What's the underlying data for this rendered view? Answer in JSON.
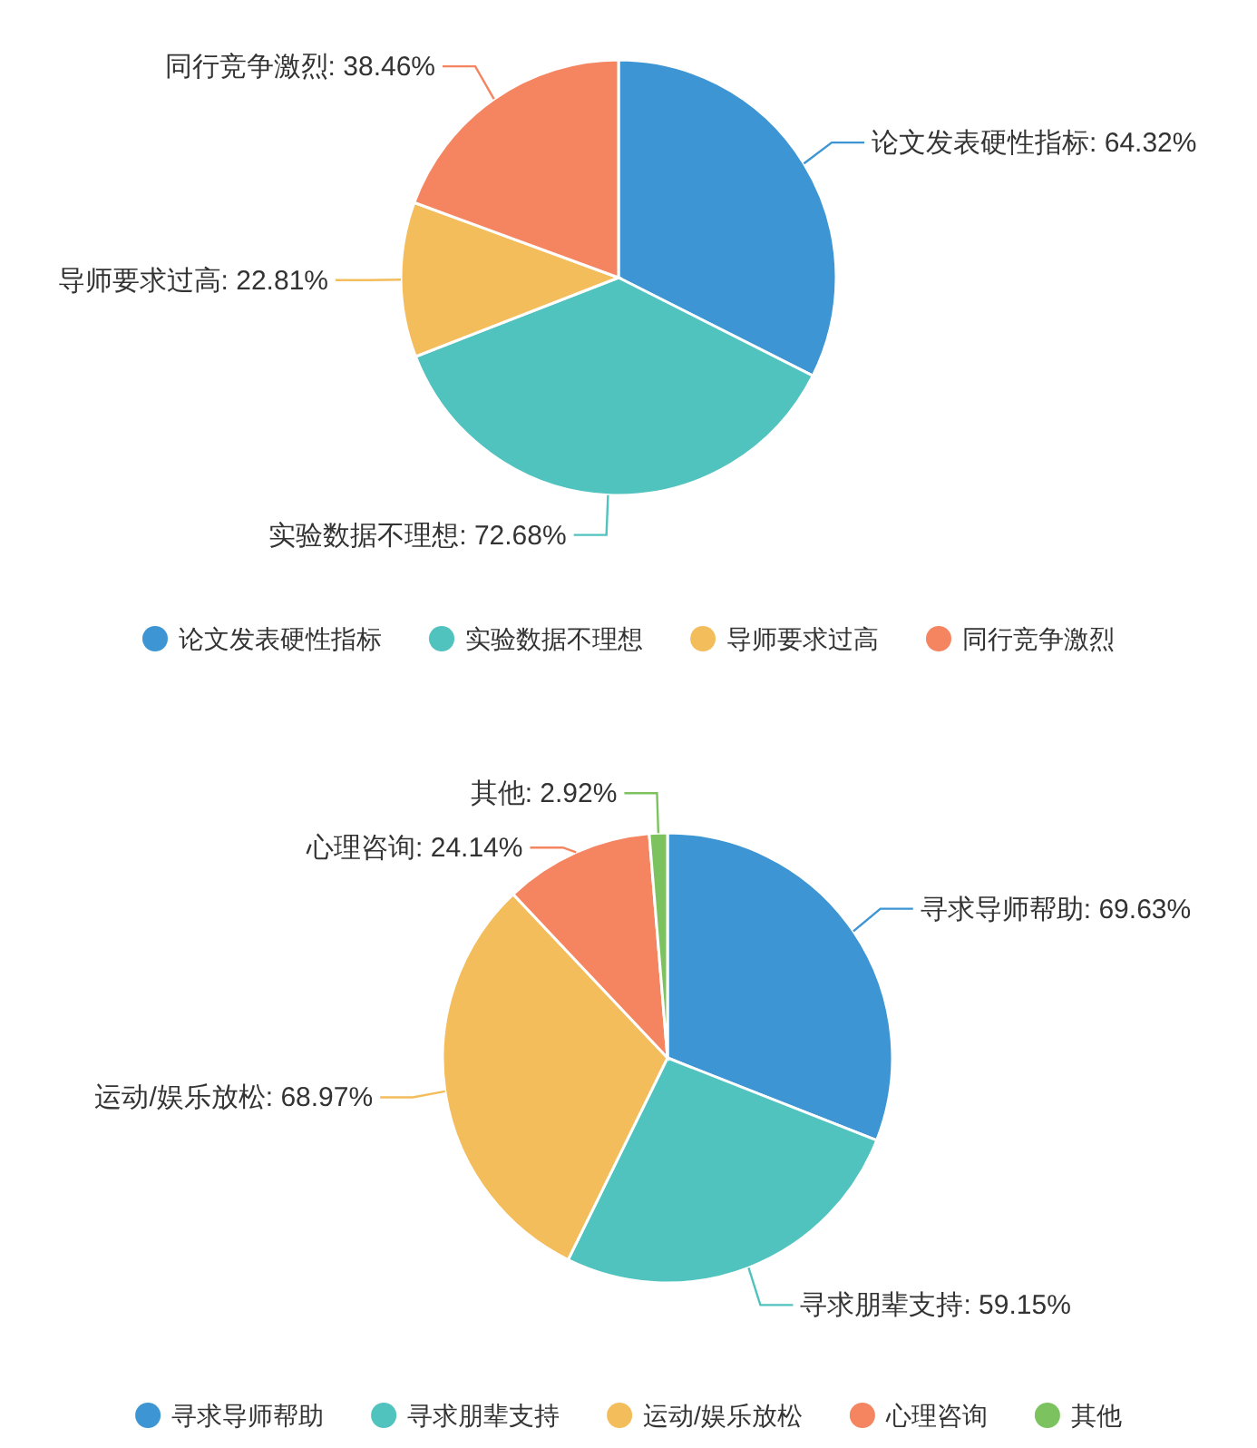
{
  "chart_data": [
    {
      "type": "pie",
      "categories": [
        "论文发表硬性指标",
        "实验数据不理想",
        "导师要求过高",
        "同行竞争激烈"
      ],
      "values": [
        64.32,
        72.68,
        22.81,
        38.46
      ],
      "value_labels": [
        ": 64.32%",
        ": 72.68%",
        ": 22.81%",
        ": 38.46%"
      ],
      "colors": [
        "#3d95d3",
        "#50c3bf",
        "#f3bd5c",
        "#f58460"
      ],
      "legend": "bottom"
    },
    {
      "type": "pie",
      "categories": [
        "寻求导师帮助",
        "寻求朋辈支持",
        "运动/娱乐放松",
        "心理咨询",
        "其他"
      ],
      "values": [
        69.63,
        59.15,
        68.97,
        24.14,
        2.92
      ],
      "value_labels": [
        ": 69.63%",
        ": 59.15%",
        ": 68.97%",
        ": 24.14%",
        ": 2.92%"
      ],
      "colors": [
        "#3d95d3",
        "#50c3bf",
        "#f3bd5c",
        "#f58460",
        "#7cc35f"
      ],
      "legend": "bottom"
    }
  ]
}
